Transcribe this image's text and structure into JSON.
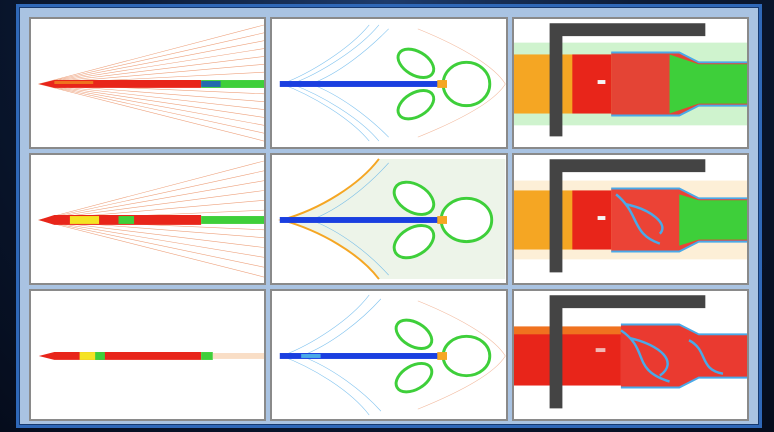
{
  "image": {
    "rows": 3,
    "columns": 3,
    "panels": [
      {
        "row": 1,
        "column": 1,
        "kind": "missile-side-contours",
        "body_color": "#e8251a"
      },
      {
        "row": 1,
        "column": 2,
        "kind": "missile-plume-contours",
        "body_color": "#1a3fe0"
      },
      {
        "row": 1,
        "column": 3,
        "kind": "missile-closeup-contours",
        "body_color": "#e8251a"
      },
      {
        "row": 2,
        "column": 1,
        "kind": "missile-side-contours",
        "body_color": "#e8251a"
      },
      {
        "row": 2,
        "column": 2,
        "kind": "missile-plume-contours",
        "body_color": "#1a3fe0"
      },
      {
        "row": 2,
        "column": 3,
        "kind": "missile-closeup-contours",
        "body_color": "#e8251a"
      },
      {
        "row": 3,
        "column": 1,
        "kind": "missile-side-contours",
        "body_color": "#e8251a"
      },
      {
        "row": 3,
        "column": 2,
        "kind": "missile-plume-contours",
        "body_color": "#1a3fe0"
      },
      {
        "row": 3,
        "column": 3,
        "kind": "missile-closeup-contours",
        "body_color": "#e8251a"
      }
    ]
  },
  "colors": {
    "frame_border": "#2f68b8",
    "frame_fill": "#a9c3e2",
    "panel_border": "#8a8a8a",
    "contour_warm": "#e98a5c",
    "contour_cool": "#4aa9e8",
    "hot": "#e8251a",
    "mid": "#f5a623",
    "green": "#3ecf3a",
    "blue": "#1a3fe0"
  }
}
